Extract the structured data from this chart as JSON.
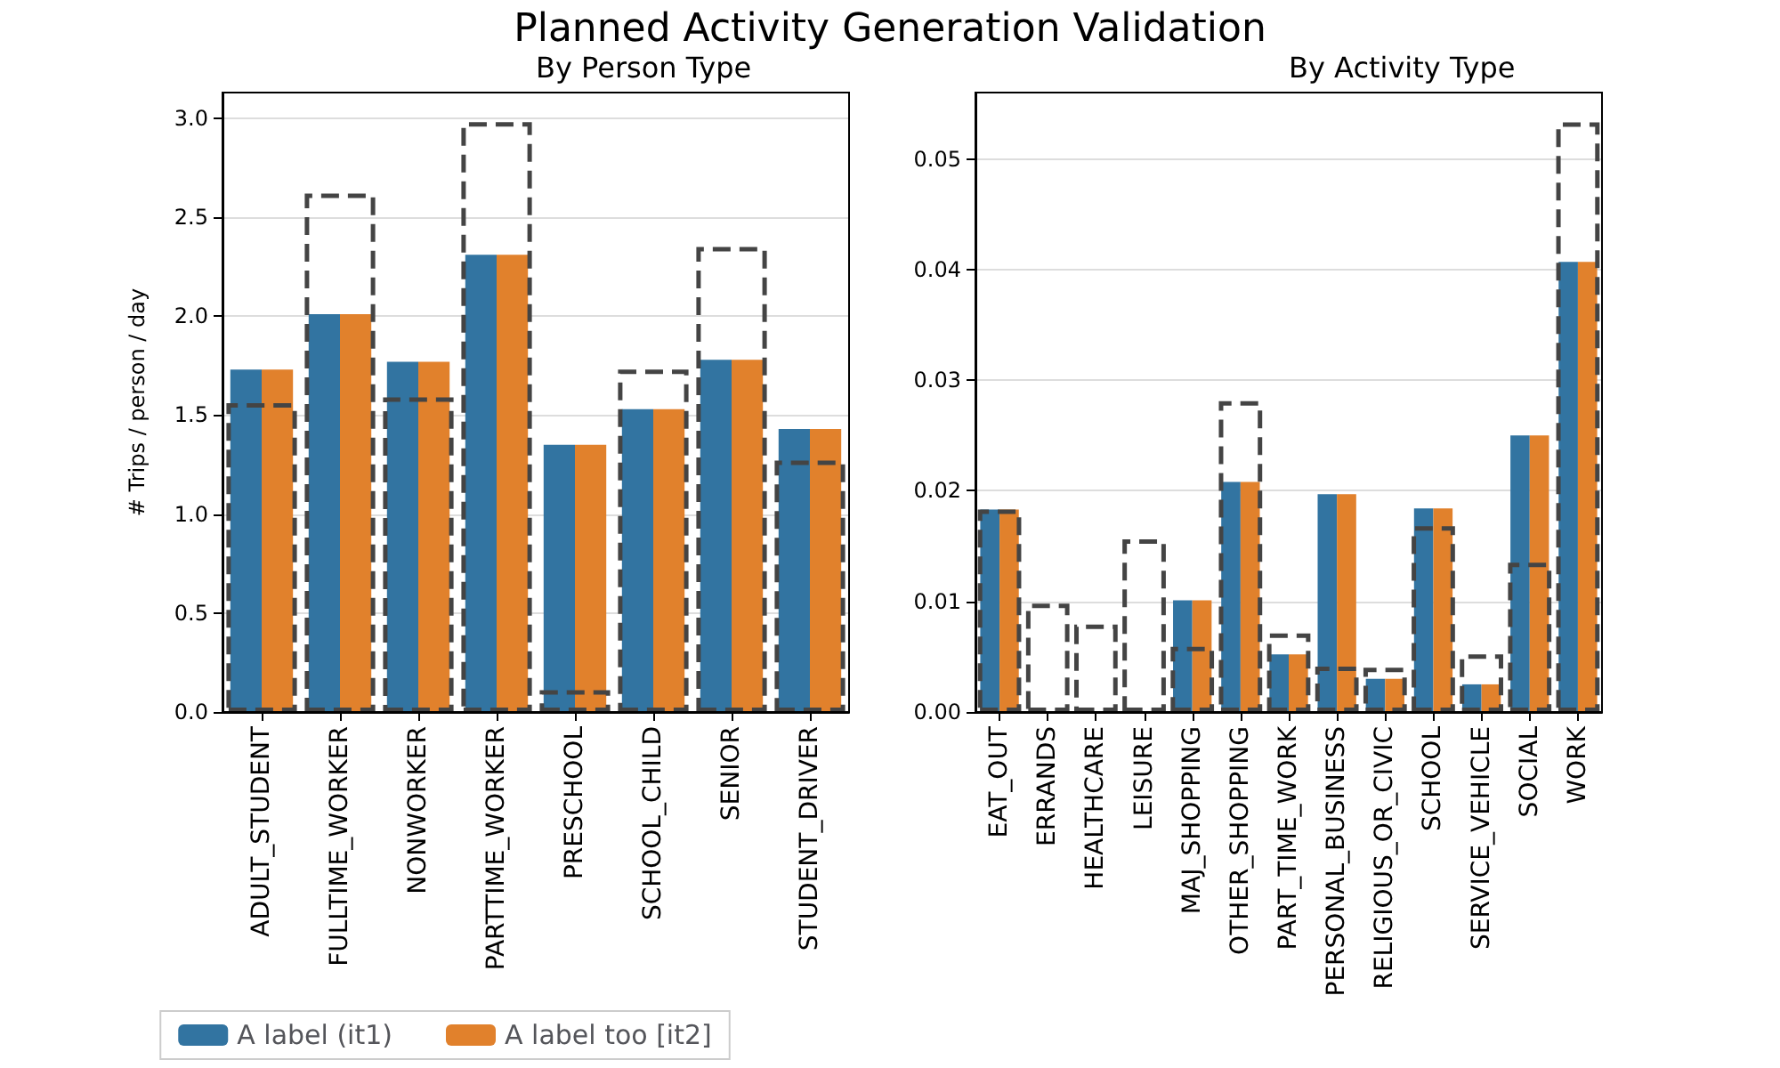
{
  "chart_data": [
    {
      "type": "bar",
      "title": "Planned Activity Generation Validation",
      "subtitle": "By Person Type",
      "ylabel": "# Trips / person / day",
      "categories": [
        "ADULT_STUDENT",
        "FULLTIME_WORKER",
        "NONWORKER",
        "PARTTIME_WORKER",
        "PRESCHOOL",
        "SCHOOL_CHILD",
        "SENIOR",
        "STUDENT_DRIVER"
      ],
      "series": [
        {
          "name": "A label (it1)",
          "color": "#3274a1",
          "values": [
            1.73,
            2.01,
            1.77,
            2.31,
            1.35,
            1.53,
            1.78,
            1.43
          ]
        },
        {
          "name": "A label too [it2]",
          "color": "#e1812c",
          "values": [
            1.73,
            2.01,
            1.77,
            2.31,
            1.35,
            1.53,
            1.78,
            1.43
          ]
        },
        {
          "color": "#444444",
          "line_style": "dashed",
          "values": [
            1.56,
            2.62,
            1.59,
            2.98,
            0.11,
            1.73,
            2.35,
            1.27
          ]
        }
      ],
      "ylim": [
        0,
        3.13
      ],
      "yticks": [
        {
          "value": 0,
          "label": "0.0"
        },
        {
          "value": 0.5,
          "label": "0.5"
        },
        {
          "value": 1,
          "label": "1.0"
        },
        {
          "value": 1.5,
          "label": "1.5"
        },
        {
          "value": 2,
          "label": "2.0"
        },
        {
          "value": 2.5,
          "label": "2.5"
        },
        {
          "value": 3,
          "label": "3.0"
        }
      ],
      "grid": "y",
      "legend": "bottom"
    },
    {
      "type": "bar",
      "title": "By Activity Type",
      "categories": [
        "EAT_OUT",
        "ERRANDS",
        "HEALTHCARE",
        "LEISURE",
        "MAJ_SHOPPING",
        "OTHER_SHOPPING",
        "PART_TIME_WORK",
        "PERSONAL_BUSINESS",
        "RELIGIOUS_OR_CIVIC",
        "SCHOOL",
        "SERVICE_VEHICLE",
        "SOCIAL",
        "WORK"
      ],
      "series": [
        {
          "color": "#3274a1",
          "values": [
            0.0183,
            0,
            0,
            0,
            0.0101,
            0.0208,
            0.0052,
            0.0197,
            0.003,
            0.0184,
            0.0025,
            0.025,
            0.0407
          ]
        },
        {
          "color": "#e1812c",
          "values": [
            0.0183,
            0,
            0,
            0,
            0.0101,
            0.0208,
            0.0052,
            0.0197,
            0.003,
            0.0184,
            0.0025,
            0.025,
            0.0407
          ]
        },
        {
          "color": "#444444",
          "line_style": "dashed",
          "values": [
            0.0183,
            0.0098,
            0.0079,
            0.0156,
            0.0059,
            0.0281,
            0.0071,
            0.0041,
            0.004,
            0.0168,
            0.0052,
            0.0135,
            0.0533
          ]
        }
      ],
      "ylim": [
        0,
        0.056
      ],
      "yticks": [
        {
          "value": 0,
          "label": "0.00"
        },
        {
          "value": 0.01,
          "label": "0.01"
        },
        {
          "value": 0.02,
          "label": "0.02"
        },
        {
          "value": 0.03,
          "label": "0.03"
        },
        {
          "value": 0.04,
          "label": "0.04"
        },
        {
          "value": 0.05,
          "label": "0.05"
        }
      ],
      "grid": "y"
    }
  ]
}
